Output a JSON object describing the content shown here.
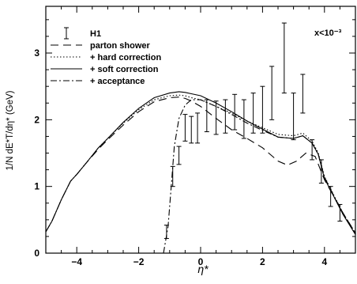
{
  "chart_data": {
    "type": "line",
    "xlabel": "η*",
    "ylabel": "1/N dE*T/dη* (GeV)",
    "xlim": [
      -5,
      5
    ],
    "ylim": [
      0,
      3.7
    ],
    "xticks": [
      -4,
      -2,
      0,
      2,
      4
    ],
    "yticks": [
      0,
      1,
      2,
      3
    ],
    "grid": false,
    "legend_position": "top-left",
    "annotation": "x<10⁻³",
    "series": [
      {
        "name": "H1",
        "style": "errorbar",
        "points": [
          {
            "x": -1.1,
            "y": 0.32,
            "lo": 0.22,
            "hi": 0.42
          },
          {
            "x": -0.9,
            "y": 1.17,
            "lo": 1.0,
            "hi": 1.3
          },
          {
            "x": -0.7,
            "y": 1.45,
            "lo": 1.33,
            "hi": 1.6
          },
          {
            "x": -0.5,
            "y": 1.88,
            "lo": 1.68,
            "hi": 2.08
          },
          {
            "x": -0.3,
            "y": 1.85,
            "lo": 1.65,
            "hi": 2.05
          },
          {
            "x": -0.1,
            "y": 1.88,
            "lo": 1.65,
            "hi": 2.1
          },
          {
            "x": 0.2,
            "y": 2.05,
            "lo": 1.82,
            "hi": 2.3
          },
          {
            "x": 0.5,
            "y": 2.02,
            "lo": 1.78,
            "hi": 2.28
          },
          {
            "x": 0.8,
            "y": 2.05,
            "lo": 1.8,
            "hi": 2.3
          },
          {
            "x": 1.1,
            "y": 2.12,
            "lo": 1.85,
            "hi": 2.38
          },
          {
            "x": 1.4,
            "y": 2.0,
            "lo": 1.72,
            "hi": 2.3
          },
          {
            "x": 1.7,
            "y": 2.1,
            "lo": 1.8,
            "hi": 2.4
          },
          {
            "x": 2.0,
            "y": 2.15,
            "lo": 1.8,
            "hi": 2.5
          },
          {
            "x": 2.3,
            "y": 2.4,
            "lo": 2.0,
            "hi": 2.8
          },
          {
            "x": 2.7,
            "y": 2.95,
            "lo": 2.4,
            "hi": 3.45
          },
          {
            "x": 3.0,
            "y": 2.05,
            "lo": 1.7,
            "hi": 2.4
          },
          {
            "x": 3.3,
            "y": 2.38,
            "lo": 2.1,
            "hi": 2.68
          },
          {
            "x": 3.6,
            "y": 1.55,
            "lo": 1.4,
            "hi": 1.7
          },
          {
            "x": 3.9,
            "y": 1.22,
            "lo": 1.05,
            "hi": 1.4
          },
          {
            "x": 4.2,
            "y": 0.85,
            "lo": 0.7,
            "hi": 1.0
          },
          {
            "x": 4.5,
            "y": 0.6,
            "lo": 0.48,
            "hi": 0.73
          }
        ]
      },
      {
        "name": "parton shower",
        "style": "dashed",
        "x": [
          -5,
          -4.8,
          -4.5,
          -4.2,
          -4.0,
          -3.7,
          -3.3,
          -3.0,
          -2.5,
          -2.0,
          -1.5,
          -1.0,
          -0.7,
          -0.5,
          -0.3,
          0.0,
          0.5,
          1.0,
          1.5,
          2.0,
          2.5,
          2.8,
          3.1,
          3.4,
          3.7,
          4.0,
          4.3,
          4.6,
          5.0
        ],
        "y": [
          0.32,
          0.48,
          0.8,
          1.08,
          1.18,
          1.35,
          1.56,
          1.7,
          1.92,
          2.12,
          2.27,
          2.33,
          2.34,
          2.32,
          2.28,
          2.2,
          2.02,
          1.85,
          1.72,
          1.58,
          1.38,
          1.32,
          1.38,
          1.5,
          1.45,
          1.1,
          0.85,
          0.6,
          0.3
        ]
      },
      {
        "name": "+ hard correction",
        "style": "dotted",
        "x": [
          -5,
          -4.8,
          -4.5,
          -4.2,
          -4.0,
          -3.7,
          -3.3,
          -3.0,
          -2.5,
          -2.0,
          -1.5,
          -1.0,
          -0.7,
          -0.5,
          -0.3,
          0.0,
          0.5,
          1.0,
          1.5,
          2.0,
          2.5,
          3.0,
          3.3,
          3.6,
          3.8,
          4.0,
          4.3,
          4.6,
          5.0
        ],
        "y": [
          0.32,
          0.48,
          0.8,
          1.08,
          1.18,
          1.35,
          1.58,
          1.72,
          1.95,
          2.15,
          2.3,
          2.36,
          2.37,
          2.36,
          2.33,
          2.3,
          2.2,
          2.1,
          1.98,
          1.88,
          1.78,
          1.76,
          1.8,
          1.68,
          1.5,
          1.15,
          0.87,
          0.6,
          0.3
        ]
      },
      {
        "name": "+ soft correction",
        "style": "solid",
        "x": [
          -5,
          -4.8,
          -4.5,
          -4.2,
          -4.0,
          -3.7,
          -3.3,
          -3.0,
          -2.5,
          -2.0,
          -1.5,
          -1.0,
          -0.7,
          -0.5,
          -0.3,
          0.0,
          0.5,
          1.0,
          1.5,
          2.0,
          2.5,
          3.0,
          3.3,
          3.6,
          3.8,
          4.0,
          4.3,
          4.6,
          5.0
        ],
        "y": [
          0.32,
          0.48,
          0.8,
          1.08,
          1.18,
          1.35,
          1.58,
          1.72,
          1.96,
          2.17,
          2.33,
          2.4,
          2.42,
          2.41,
          2.39,
          2.36,
          2.25,
          2.12,
          1.98,
          1.86,
          1.74,
          1.72,
          1.76,
          1.65,
          1.48,
          1.12,
          0.85,
          0.58,
          0.28
        ]
      },
      {
        "name": "+ acceptance",
        "style": "dashdot",
        "x": [
          -1.2,
          -1.05,
          -0.95,
          -0.85,
          -0.7,
          -0.5,
          -0.3,
          0.0,
          0.5,
          1.0,
          1.5,
          2.0,
          2.5,
          3.0,
          3.3,
          3.6,
          3.8,
          4.0,
          4.3,
          4.6,
          5.0
        ],
        "y": [
          0.0,
          0.4,
          1.0,
          1.6,
          2.02,
          2.22,
          2.3,
          2.3,
          2.2,
          2.08,
          1.95,
          1.84,
          1.74,
          1.72,
          1.76,
          1.65,
          1.48,
          1.14,
          0.86,
          0.6,
          0.3
        ]
      }
    ]
  }
}
